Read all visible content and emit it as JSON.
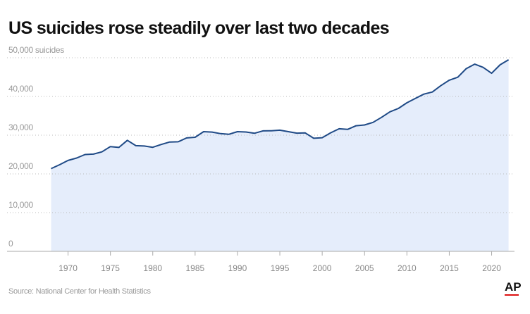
{
  "chart_data": {
    "type": "area",
    "title": "US suicides rose steadily over last two decades",
    "source": "Source: National Center for Health Statistics",
    "logo": "AP",
    "x": [
      1968,
      1969,
      1970,
      1971,
      1972,
      1973,
      1974,
      1975,
      1976,
      1977,
      1978,
      1979,
      1980,
      1981,
      1982,
      1983,
      1984,
      1985,
      1986,
      1987,
      1988,
      1989,
      1990,
      1991,
      1992,
      1993,
      1994,
      1995,
      1996,
      1997,
      1998,
      1999,
      2000,
      2001,
      2002,
      2003,
      2004,
      2005,
      2006,
      2007,
      2008,
      2009,
      2010,
      2011,
      2012,
      2013,
      2014,
      2015,
      2016,
      2017,
      2018,
      2019,
      2020,
      2021,
      2022
    ],
    "series": [
      {
        "name": "US suicides",
        "color": "#1f4a86",
        "fill": "#e5edfb",
        "values": [
          21372,
          22364,
          23480,
          24092,
          25004,
          25118,
          25683,
          27063,
          26832,
          28681,
          27294,
          27206,
          26869,
          27596,
          28242,
          28295,
          29286,
          29453,
          30904,
          30796,
          30407,
          30232,
          30906,
          30810,
          30484,
          31102,
          31142,
          31284,
          30903,
          30535,
          30575,
          29199,
          29350,
          30622,
          31655,
          31484,
          32439,
          32637,
          33300,
          34598,
          36035,
          36909,
          38364,
          39518,
          40600,
          41149,
          42773,
          44193,
          44965,
          47173,
          48344,
          47511,
          45979,
          48183,
          49476
        ]
      }
    ],
    "xlim": [
      1962.8,
      2022.7
    ],
    "xticks": [
      1970,
      1975,
      1980,
      1985,
      1990,
      1995,
      2000,
      2005,
      2010,
      2015,
      2020
    ],
    "ylim": [
      0,
      50000
    ],
    "yticks": [
      0,
      {
        "value": 10000,
        "label": "10,000"
      },
      {
        "value": 20000,
        "label": "20,000"
      },
      {
        "value": 30000,
        "label": "30,000"
      },
      {
        "value": 40000,
        "label": "40,000"
      },
      {
        "value": 50000,
        "label": "50,000 suicides"
      }
    ],
    "grid": true
  }
}
